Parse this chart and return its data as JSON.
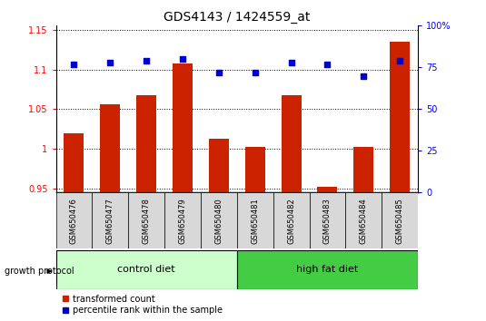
{
  "title": "GDS4143 / 1424559_at",
  "samples": [
    "GSM650476",
    "GSM650477",
    "GSM650478",
    "GSM650479",
    "GSM650480",
    "GSM650481",
    "GSM650482",
    "GSM650483",
    "GSM650484",
    "GSM650485"
  ],
  "transformed_count": [
    1.02,
    1.056,
    1.067,
    1.107,
    1.013,
    1.002,
    1.067,
    0.952,
    1.002,
    1.135
  ],
  "percentile_rank": [
    77,
    78,
    79,
    80,
    72,
    72,
    78,
    77,
    70,
    79
  ],
  "groups": [
    {
      "label": "control diet",
      "start": 0,
      "end": 4,
      "color": "#ccffcc"
    },
    {
      "label": "high fat diet",
      "start": 5,
      "end": 9,
      "color": "#44cc44"
    }
  ],
  "group_label_prefix": "growth protocol",
  "ymin": 0.945,
  "ymax": 1.155,
  "ylim_right": [
    0,
    100
  ],
  "yticks_left": [
    0.95,
    1.0,
    1.05,
    1.1,
    1.15
  ],
  "ytick_labels_left": [
    "0.95",
    "1",
    "1.05",
    "1.1",
    "1.15"
  ],
  "yticks_right": [
    0,
    25,
    50,
    75,
    100
  ],
  "ytick_labels_right": [
    "0",
    "25",
    "50",
    "75",
    "100%"
  ],
  "bar_color": "#cc2200",
  "dot_color": "#0000cc",
  "bar_width": 0.55,
  "background_plot": "#ffffff",
  "label_bg": "#d8d8d8",
  "ctrl_color": "#ccffcc",
  "hf_color": "#44cc44",
  "legend_bar_label": "transformed count",
  "legend_dot_label": "percentile rank within the sample",
  "title_fontsize": 10,
  "tick_fontsize": 7,
  "sample_fontsize": 6,
  "group_fontsize": 8
}
